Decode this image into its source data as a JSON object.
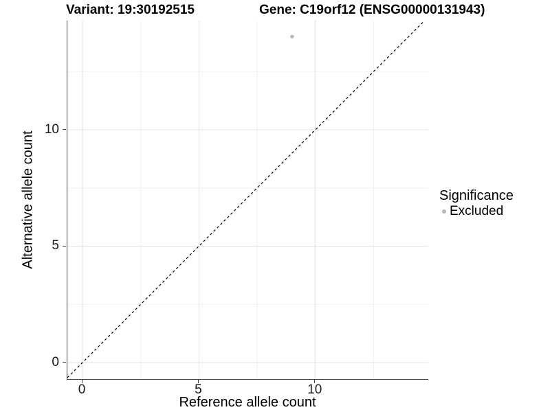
{
  "chart_data": {
    "type": "scatter",
    "title_left": "Variant: 19:30192515",
    "title_right": "Gene: C19orf12 (ENSG00000131943)",
    "xlabel": "Reference allele count",
    "ylabel": "Alternative allele count",
    "xlim": [
      -0.65,
      14.85
    ],
    "ylim": [
      -0.71,
      14.69
    ],
    "x_major_ticks": [
      0,
      5,
      10
    ],
    "y_major_ticks": [
      0,
      5,
      10
    ],
    "x_minor_ticks": [
      2.5,
      7.5,
      12.5
    ],
    "y_minor_ticks": [
      2.5,
      7.5,
      12.5
    ],
    "grid": "major and minor gridlines, white panel background",
    "reference_line": {
      "equation": "y = x",
      "style": "dashed",
      "color": "#000000"
    },
    "series": [
      {
        "name": "Excluded",
        "color": "#b9b9b9",
        "points": [
          {
            "x": 9,
            "y": 14
          }
        ]
      }
    ],
    "legend": {
      "title": "Significance",
      "position": "right",
      "items": [
        {
          "label": "Excluded",
          "color": "#b9b9b9"
        }
      ]
    },
    "colors": {
      "grid_major": "#e3e3e3",
      "grid_minor": "#f1f1f1",
      "axis_line": "#404040",
      "tick_text": "#1a1a1a",
      "point": "#b9b9b9"
    }
  }
}
